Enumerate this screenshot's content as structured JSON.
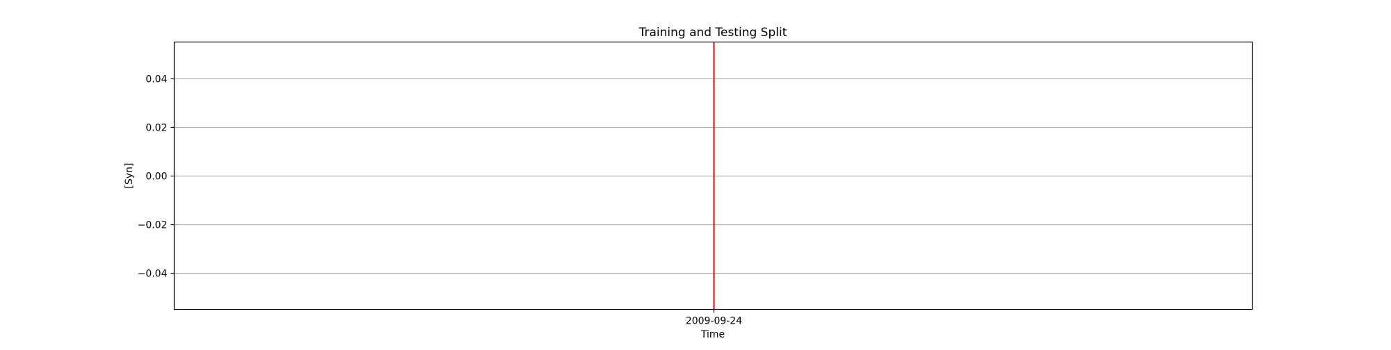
{
  "chart_data": {
    "type": "line",
    "title": "Training and Testing Split",
    "xlabel": "Time",
    "ylabel": "[Syn]",
    "ylim": [
      -0.055,
      0.055
    ],
    "yticks": [
      0.04,
      0.02,
      0.0,
      -0.02,
      -0.04
    ],
    "ytick_labels": [
      "0.04",
      "0.02",
      "0.00",
      "−0.02",
      "−0.04"
    ],
    "xticks": [
      "2009-09-24"
    ],
    "split_line": {
      "x": "2009-09-24",
      "color": "#ff0000"
    },
    "series": [],
    "grid": "horizontal"
  }
}
